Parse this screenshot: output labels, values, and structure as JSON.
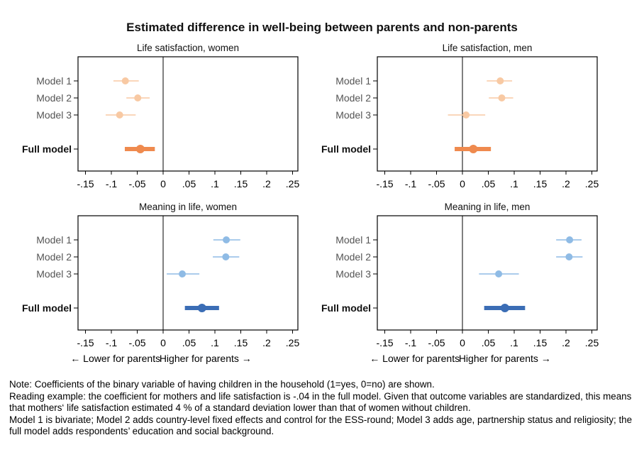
{
  "chart_data": {
    "type": "forest",
    "title": "Estimated difference in well-being between parents and non-parents",
    "xticks": [
      -0.15,
      -0.1,
      -0.05,
      0,
      0.05,
      0.1,
      0.15,
      0.2,
      0.25
    ],
    "xtick_labels": [
      "-.15",
      "-.1",
      "-.05",
      "0",
      ".05",
      ".1",
      ".15",
      ".2",
      ".25"
    ],
    "xlim": [
      -0.17,
      0.265
    ],
    "direction_labels": {
      "left": "← Lower for parents",
      "right": "Higher for parents →"
    },
    "rows": [
      "Model 1",
      "Model 2",
      "Model 3",
      "Full model"
    ],
    "colors": {
      "orange_light": "#f8c9a3",
      "orange_full": "#ef8a4e",
      "blue_light": "#8fbbe5",
      "blue_full": "#3b6db5"
    },
    "panels": [
      {
        "title": "Life satisfaction, women",
        "palette": "orange",
        "estimates": [
          {
            "model": "Model 1",
            "coef": -0.073,
            "lo": -0.096,
            "hi": -0.047
          },
          {
            "model": "Model 2",
            "coef": -0.049,
            "lo": -0.071,
            "hi": -0.026
          },
          {
            "model": "Model 3",
            "coef": -0.084,
            "lo": -0.111,
            "hi": -0.053
          },
          {
            "model": "Full model",
            "coef": -0.044,
            "lo": -0.074,
            "hi": -0.016
          }
        ]
      },
      {
        "title": "Life satisfaction, men",
        "palette": "orange",
        "estimates": [
          {
            "model": "Model 1",
            "coef": 0.073,
            "lo": 0.047,
            "hi": 0.096
          },
          {
            "model": "Model 2",
            "coef": 0.076,
            "lo": 0.051,
            "hi": 0.098
          },
          {
            "model": "Model 3",
            "coef": 0.007,
            "lo": -0.028,
            "hi": 0.044
          },
          {
            "model": "Full model",
            "coef": 0.021,
            "lo": -0.015,
            "hi": 0.055
          }
        ]
      },
      {
        "title": "Meaning in life, women",
        "palette": "blue",
        "estimates": [
          {
            "model": "Model 1",
            "coef": 0.122,
            "lo": 0.097,
            "hi": 0.149
          },
          {
            "model": "Model 2",
            "coef": 0.121,
            "lo": 0.096,
            "hi": 0.147
          },
          {
            "model": "Model 3",
            "coef": 0.037,
            "lo": 0.007,
            "hi": 0.07
          },
          {
            "model": "Full model",
            "coef": 0.075,
            "lo": 0.042,
            "hi": 0.108
          }
        ]
      },
      {
        "title": "Meaning in life, men",
        "palette": "blue",
        "estimates": [
          {
            "model": "Model 1",
            "coef": 0.207,
            "lo": 0.181,
            "hi": 0.23
          },
          {
            "model": "Model 2",
            "coef": 0.206,
            "lo": 0.181,
            "hi": 0.232
          },
          {
            "model": "Model 3",
            "coef": 0.07,
            "lo": 0.032,
            "hi": 0.109
          },
          {
            "model": "Full model",
            "coef": 0.082,
            "lo": 0.042,
            "hi": 0.121
          }
        ]
      }
    ]
  },
  "notes": [
    "Note: Coefficients of the binary variable of having children in the household (1=yes, 0=no) are shown.",
    " Reading example: the coefficient for mothers and life satisfaction is -.04 in the full model. Given that outcome variables are standardized, this means that mothers‘ life satisfaction estimated 4 % of a standard deviation lower than that of women without children.",
    "Model 1 is bivariate; Model 2 adds country-level fixed effects and control for the ESS-round; Model 3 adds age, partnership status and religiosity; the full model adds respondents’ education and social background."
  ]
}
